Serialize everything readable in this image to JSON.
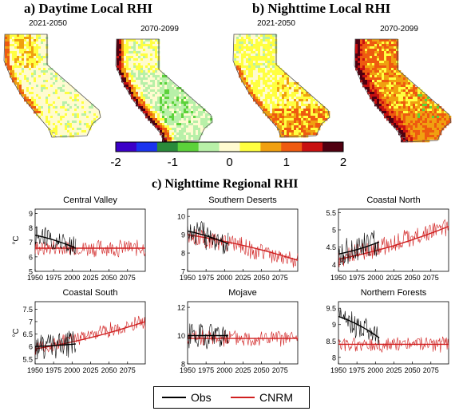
{
  "figure": {
    "title_a": "a) Daytime Local RHI",
    "title_b": "b) Nighttime Local RHI",
    "title_c": "c) Nighttime Regional RHI",
    "period_1": "2021-2050",
    "period_2": "2070-2099"
  },
  "colorbar": {
    "colors": [
      "#3b00c8",
      "#1a33ee",
      "#2a8a3a",
      "#5cd23a",
      "#b8f0a8",
      "#fffbd0",
      "#ffff40",
      "#f0a010",
      "#ee5a10",
      "#c81010",
      "#500010"
    ],
    "tick_labels": [
      "-2",
      "-1",
      "0",
      "1",
      "2"
    ],
    "tick_values": [
      -2,
      -1,
      0,
      1,
      2
    ],
    "range": [
      -2,
      2
    ]
  },
  "maps": [
    {
      "label": "2021-2050",
      "style": "day1"
    },
    {
      "label": "2070-2099",
      "style": "day2"
    },
    {
      "label": "2021-2050",
      "style": "night1"
    },
    {
      "label": "2070-2099",
      "style": "night2"
    }
  ],
  "legend": {
    "obs_label": "Obs",
    "cnrm_label": "CNRM",
    "obs_color": "#000000",
    "cnrm_color": "#d02020"
  },
  "chart_data": [
    {
      "type": "line",
      "title": "Central Valley",
      "ylabel": "°C",
      "xlim": [
        1950,
        2099
      ],
      "ylim": [
        5,
        9.3
      ],
      "yticks": [
        5,
        6,
        7,
        8,
        9
      ],
      "xticks": [
        1950,
        1975,
        2000,
        2025,
        2050,
        2075
      ],
      "obs": {
        "start": 1950,
        "end": 2005,
        "mean": 7.4,
        "amp": 0.75,
        "trend": [
          7.5,
          6.6
        ]
      },
      "cnrm": {
        "start": 1950,
        "end": 2099,
        "mean": 6.5,
        "amp": 0.55,
        "trend": [
          6.6,
          6.6
        ]
      }
    },
    {
      "type": "line",
      "title": "Southern Deserts",
      "ylabel": "",
      "xlim": [
        1950,
        2099
      ],
      "ylim": [
        7,
        10.4
      ],
      "yticks": [
        7,
        8,
        9,
        10
      ],
      "xticks": [
        1950,
        1975,
        2000,
        2025,
        2050,
        2075
      ],
      "obs": {
        "start": 1950,
        "end": 2005,
        "mean": 8.8,
        "amp": 0.7,
        "trend": [
          9.2,
          8.5
        ]
      },
      "cnrm": {
        "start": 1950,
        "end": 2099,
        "mean": 8.2,
        "amp": 0.5,
        "trend": [
          9.0,
          7.6
        ]
      }
    },
    {
      "type": "line",
      "title": "Coastal North",
      "ylabel": "",
      "xlim": [
        1950,
        2099
      ],
      "ylim": [
        3.8,
        5.6
      ],
      "yticks": [
        4,
        4.5,
        5,
        5.5
      ],
      "xticks": [
        1950,
        1975,
        2000,
        2025,
        2050,
        2075
      ],
      "obs": {
        "start": 1950,
        "end": 2005,
        "mean": 4.55,
        "amp": 0.4,
        "trend": [
          4.3,
          4.65
        ]
      },
      "cnrm": {
        "start": 1950,
        "end": 2099,
        "mean": 4.4,
        "amp": 0.25,
        "trend": [
          4.15,
          5.1
        ]
      }
    },
    {
      "type": "line",
      "title": "Coastal South",
      "ylabel": "°C",
      "xlim": [
        1950,
        2099
      ],
      "ylim": [
        5.3,
        7.8
      ],
      "yticks": [
        5.5,
        6,
        6.5,
        7,
        7.5
      ],
      "xticks": [
        1950,
        1975,
        2000,
        2025,
        2050,
        2075
      ],
      "obs": {
        "start": 1950,
        "end": 2005,
        "mean": 6.2,
        "amp": 0.55,
        "trend": [
          6.0,
          6.1
        ]
      },
      "cnrm": {
        "start": 1950,
        "end": 2099,
        "mean": 6.3,
        "amp": 0.3,
        "trend": [
          5.9,
          7.0
        ]
      }
    },
    {
      "type": "line",
      "title": "Mojave",
      "ylabel": "",
      "xlim": [
        1950,
        2099
      ],
      "ylim": [
        8,
        12.4
      ],
      "yticks": [
        8,
        10,
        12
      ],
      "xticks": [
        1950,
        1975,
        2000,
        2025,
        2050,
        2075
      ],
      "obs": {
        "start": 1950,
        "end": 2005,
        "mean": 10.0,
        "amp": 0.9,
        "trend": [
          10,
          10
        ]
      },
      "cnrm": {
        "start": 1950,
        "end": 2099,
        "mean": 9.8,
        "amp": 0.55,
        "trend": [
          9.8,
          9.8
        ]
      }
    },
    {
      "type": "line",
      "title": "Northern Forests",
      "ylabel": "",
      "xlim": [
        1950,
        2099
      ],
      "ylim": [
        7.8,
        9.7
      ],
      "yticks": [
        8,
        8.5,
        9,
        9.5
      ],
      "xticks": [
        1950,
        1975,
        2000,
        2025,
        2050,
        2075
      ],
      "obs": {
        "start": 1950,
        "end": 2005,
        "mean": 9.0,
        "amp": 0.35,
        "trend": [
          9.25,
          8.6
        ]
      },
      "cnrm": {
        "start": 1950,
        "end": 2099,
        "mean": 8.4,
        "amp": 0.22,
        "trend": [
          8.4,
          8.4
        ]
      }
    }
  ]
}
